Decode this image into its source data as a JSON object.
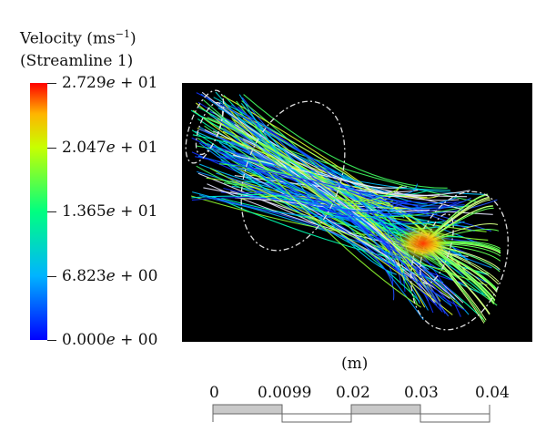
{
  "legend": {
    "title_main": "Velocity (ms",
    "title_exp": "−1",
    "title_close": ")",
    "subtitle": "(Streamline 1)",
    "ticks": [
      {
        "mantissa": "2.729",
        "exp": "+ 01",
        "level": 1.0
      },
      {
        "mantissa": "2.047",
        "exp": "+ 01",
        "level": 0.75
      },
      {
        "mantissa": "1.365",
        "exp": "+ 01",
        "level": 0.5
      },
      {
        "mantissa": "6.823",
        "exp": "+ 00",
        "level": 0.25
      },
      {
        "mantissa": "0.000",
        "exp": "+ 00",
        "level": 0.0
      }
    ]
  },
  "scale_bar": {
    "unit": "(m)",
    "labels": [
      "0",
      "0.0099",
      "0.02",
      "0.03",
      "0.04"
    ]
  }
}
